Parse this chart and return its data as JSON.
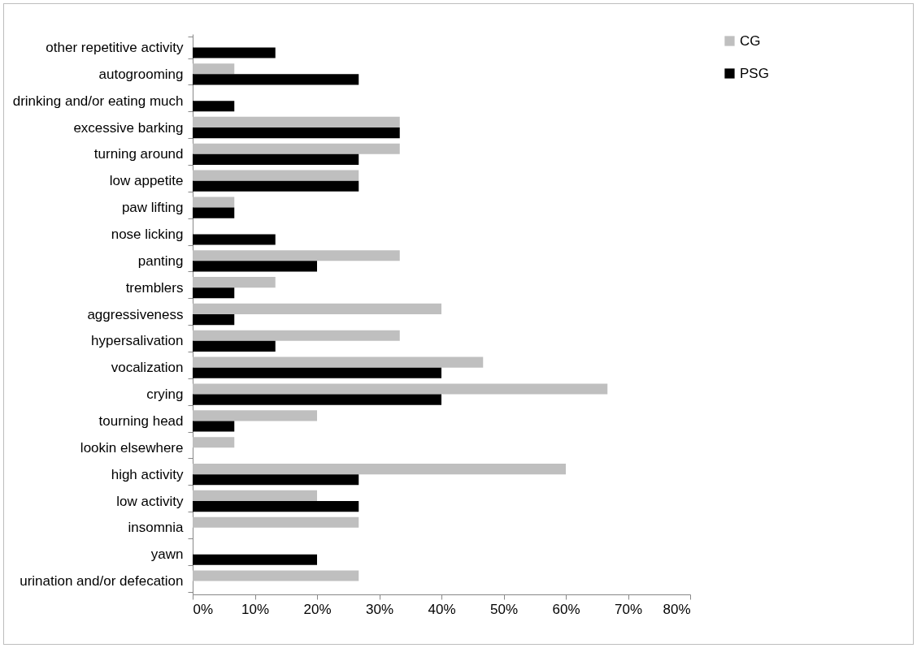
{
  "chart_data": {
    "type": "bar",
    "orientation": "horizontal",
    "categories": [
      "other repetitive activity",
      "autogrooming",
      "drinking and/or eating much",
      "excessive barking",
      "turning around",
      "low appetite",
      "paw lifting",
      "nose licking",
      "panting",
      "tremblers",
      "aggressiveness",
      "hypersalivation",
      "vocalization",
      "crying",
      "tourning head",
      "lookin elsewhere",
      "high activity",
      "low activity",
      "insomnia",
      "yawn",
      "urination and/or defecation"
    ],
    "series": [
      {
        "name": "CG",
        "color": "#bfbfbf",
        "values": [
          0,
          6.7,
          0,
          33.3,
          33.3,
          26.7,
          6.7,
          0,
          33.3,
          13.3,
          40,
          33.3,
          46.7,
          66.7,
          20,
          6.7,
          60,
          20,
          26.7,
          0,
          26.7
        ]
      },
      {
        "name": "PSG",
        "color": "#000000",
        "values": [
          13.3,
          26.7,
          6.7,
          33.3,
          26.7,
          26.7,
          6.7,
          13.3,
          20,
          6.7,
          6.7,
          13.3,
          40,
          40,
          6.7,
          0,
          26.7,
          26.7,
          0,
          20,
          0
        ]
      }
    ],
    "xlim": [
      0,
      80
    ],
    "xticks": [
      {
        "value": 0,
        "label": "0%"
      },
      {
        "value": 10,
        "label": "10%"
      },
      {
        "value": 20,
        "label": "20%"
      },
      {
        "value": 30,
        "label": "30%"
      },
      {
        "value": 40,
        "label": "40%"
      },
      {
        "value": 50,
        "label": "50%"
      },
      {
        "value": 60,
        "label": "60%"
      },
      {
        "value": 70,
        "label": "70%"
      },
      {
        "value": 80,
        "label": "80%"
      }
    ],
    "grid": false,
    "legend": "right"
  }
}
